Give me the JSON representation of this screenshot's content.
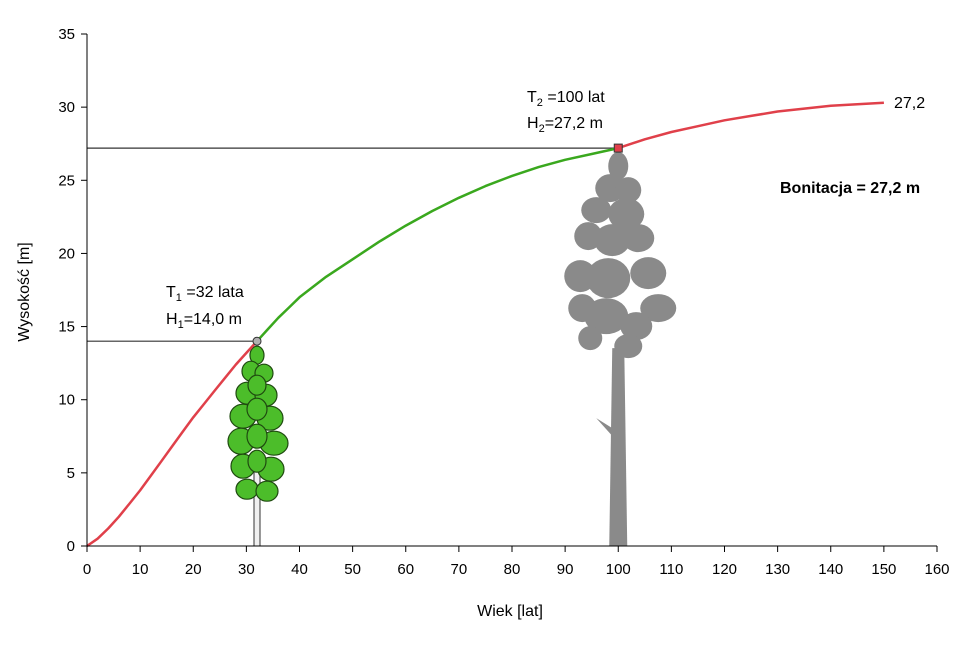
{
  "chart_data": {
    "type": "line",
    "xlabel": "Wiek [lat]",
    "ylabel": "Wysokość [m]",
    "xlim": [
      0,
      160
    ],
    "ylim": [
      0,
      35
    ],
    "x_ticks": [
      0,
      10,
      20,
      30,
      40,
      50,
      60,
      70,
      80,
      90,
      100,
      110,
      120,
      130,
      140,
      150,
      160
    ],
    "y_ticks": [
      0,
      5,
      10,
      15,
      20,
      25,
      30,
      35
    ],
    "grid": false,
    "colors": {
      "early": "#e0404a",
      "middle": "#3aa81e",
      "late": "#e0404a",
      "guides": "#333333",
      "tree_young": "#4cbd2a",
      "tree_old": "#8a8a8a"
    },
    "series": [
      {
        "x": [
          0,
          2,
          4,
          6,
          8,
          10,
          12,
          14,
          16,
          18,
          20,
          22,
          24,
          26,
          28,
          30,
          32,
          34,
          36,
          38,
          40,
          45,
          50,
          55,
          60,
          65,
          70,
          75,
          80,
          85,
          90,
          95,
          100,
          105,
          110,
          115,
          120,
          125,
          130,
          135,
          140,
          145,
          150
        ],
        "y": [
          0,
          0.5,
          1.2,
          2.0,
          2.9,
          3.8,
          4.8,
          5.8,
          6.8,
          7.8,
          8.8,
          9.7,
          10.6,
          11.5,
          12.4,
          13.2,
          14.0,
          14.8,
          15.6,
          16.3,
          17.0,
          18.4,
          19.6,
          20.8,
          21.9,
          22.9,
          23.8,
          24.6,
          25.3,
          25.9,
          26.4,
          26.8,
          27.2,
          27.8,
          28.3,
          28.7,
          29.1,
          29.4,
          29.7,
          29.9,
          30.1,
          30.2,
          30.3
        ]
      }
    ],
    "annotations": {
      "point1": {
        "x": 32,
        "y": 14.0,
        "t_prefix": "T",
        "t_sub": "1",
        "t_text": " =32 lata",
        "h_prefix": "H",
        "h_sub": "1",
        "h_text": "=14,0 m"
      },
      "point2": {
        "x": 100,
        "y": 27.2,
        "t_prefix": "T",
        "t_sub": "2",
        "t_text": " =100 lat",
        "h_prefix": "H",
        "h_sub": "2",
        "h_text": "=27,2 m"
      },
      "end_label": "27,2",
      "bonitation": "Bonitacja = 27,2 m"
    }
  }
}
